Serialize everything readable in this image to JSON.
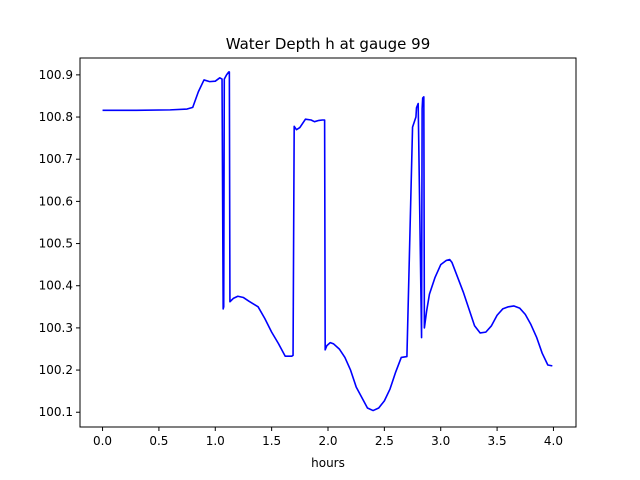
{
  "chart_data": {
    "type": "line",
    "title": "Water Depth h at gauge 99",
    "xlabel": "hours",
    "ylabel": "",
    "xlim": [
      -0.2,
      4.2
    ],
    "ylim": [
      100.065,
      100.94
    ],
    "xticks": [
      0.0,
      0.5,
      1.0,
      1.5,
      2.0,
      2.5,
      3.0,
      3.5,
      4.0
    ],
    "xtick_labels": [
      "0.0",
      "0.5",
      "1.0",
      "1.5",
      "2.0",
      "2.5",
      "3.0",
      "3.5",
      "4.0"
    ],
    "yticks": [
      100.1,
      100.2,
      100.3,
      100.4,
      100.5,
      100.6,
      100.7,
      100.8,
      100.9
    ],
    "ytick_labels": [
      "100.1",
      "100.2",
      "100.3",
      "100.4",
      "100.5",
      "100.6",
      "100.7",
      "100.8",
      "100.9"
    ],
    "grid": false,
    "series": [
      {
        "color": "#0000ff",
        "x": [
          0.0,
          0.3,
          0.6,
          0.75,
          0.8,
          0.85,
          0.9,
          0.95,
          1.0,
          1.04,
          1.06,
          1.07,
          1.075,
          1.08,
          1.1,
          1.12,
          1.125,
          1.13,
          1.16,
          1.2,
          1.25,
          1.3,
          1.38,
          1.44,
          1.5,
          1.56,
          1.62,
          1.68,
          1.69,
          1.7,
          1.72,
          1.75,
          1.8,
          1.85,
          1.88,
          1.92,
          1.95,
          1.97,
          1.975,
          1.99,
          2.02,
          2.05,
          2.1,
          2.15,
          2.2,
          2.25,
          2.3,
          2.35,
          2.4,
          2.45,
          2.5,
          2.55,
          2.6,
          2.65,
          2.7,
          2.75,
          2.78,
          2.785,
          2.8,
          2.83,
          2.835,
          2.84,
          2.85,
          2.855,
          2.86,
          2.875,
          2.9,
          2.95,
          3.0,
          3.05,
          3.08,
          3.1,
          3.15,
          3.2,
          3.25,
          3.3,
          3.35,
          3.4,
          3.45,
          3.5,
          3.55,
          3.6,
          3.65,
          3.7,
          3.75,
          3.8,
          3.85,
          3.9,
          3.95,
          3.99
        ],
        "y": [
          100.816,
          100.816,
          100.817,
          100.819,
          100.823,
          100.86,
          100.888,
          100.884,
          100.885,
          100.893,
          100.89,
          100.345,
          100.35,
          100.89,
          100.9,
          100.907,
          100.907,
          100.362,
          100.37,
          100.375,
          100.372,
          100.363,
          100.35,
          100.322,
          100.29,
          100.263,
          100.233,
          100.233,
          100.235,
          100.778,
          100.77,
          100.775,
          100.795,
          100.793,
          100.789,
          100.792,
          100.793,
          100.793,
          100.248,
          100.258,
          100.265,
          100.262,
          100.25,
          100.23,
          100.2,
          100.16,
          100.135,
          100.11,
          100.104,
          100.11,
          100.127,
          100.155,
          100.195,
          100.23,
          100.232,
          100.776,
          100.8,
          100.822,
          100.832,
          100.277,
          100.82,
          100.845,
          100.848,
          100.3,
          100.31,
          100.34,
          100.38,
          100.42,
          100.45,
          100.46,
          100.462,
          100.455,
          100.42,
          100.385,
          100.345,
          100.305,
          100.288,
          100.29,
          100.305,
          100.33,
          100.345,
          100.35,
          100.352,
          100.347,
          100.332,
          100.308,
          100.278,
          100.24,
          100.212,
          100.21
        ]
      }
    ]
  }
}
